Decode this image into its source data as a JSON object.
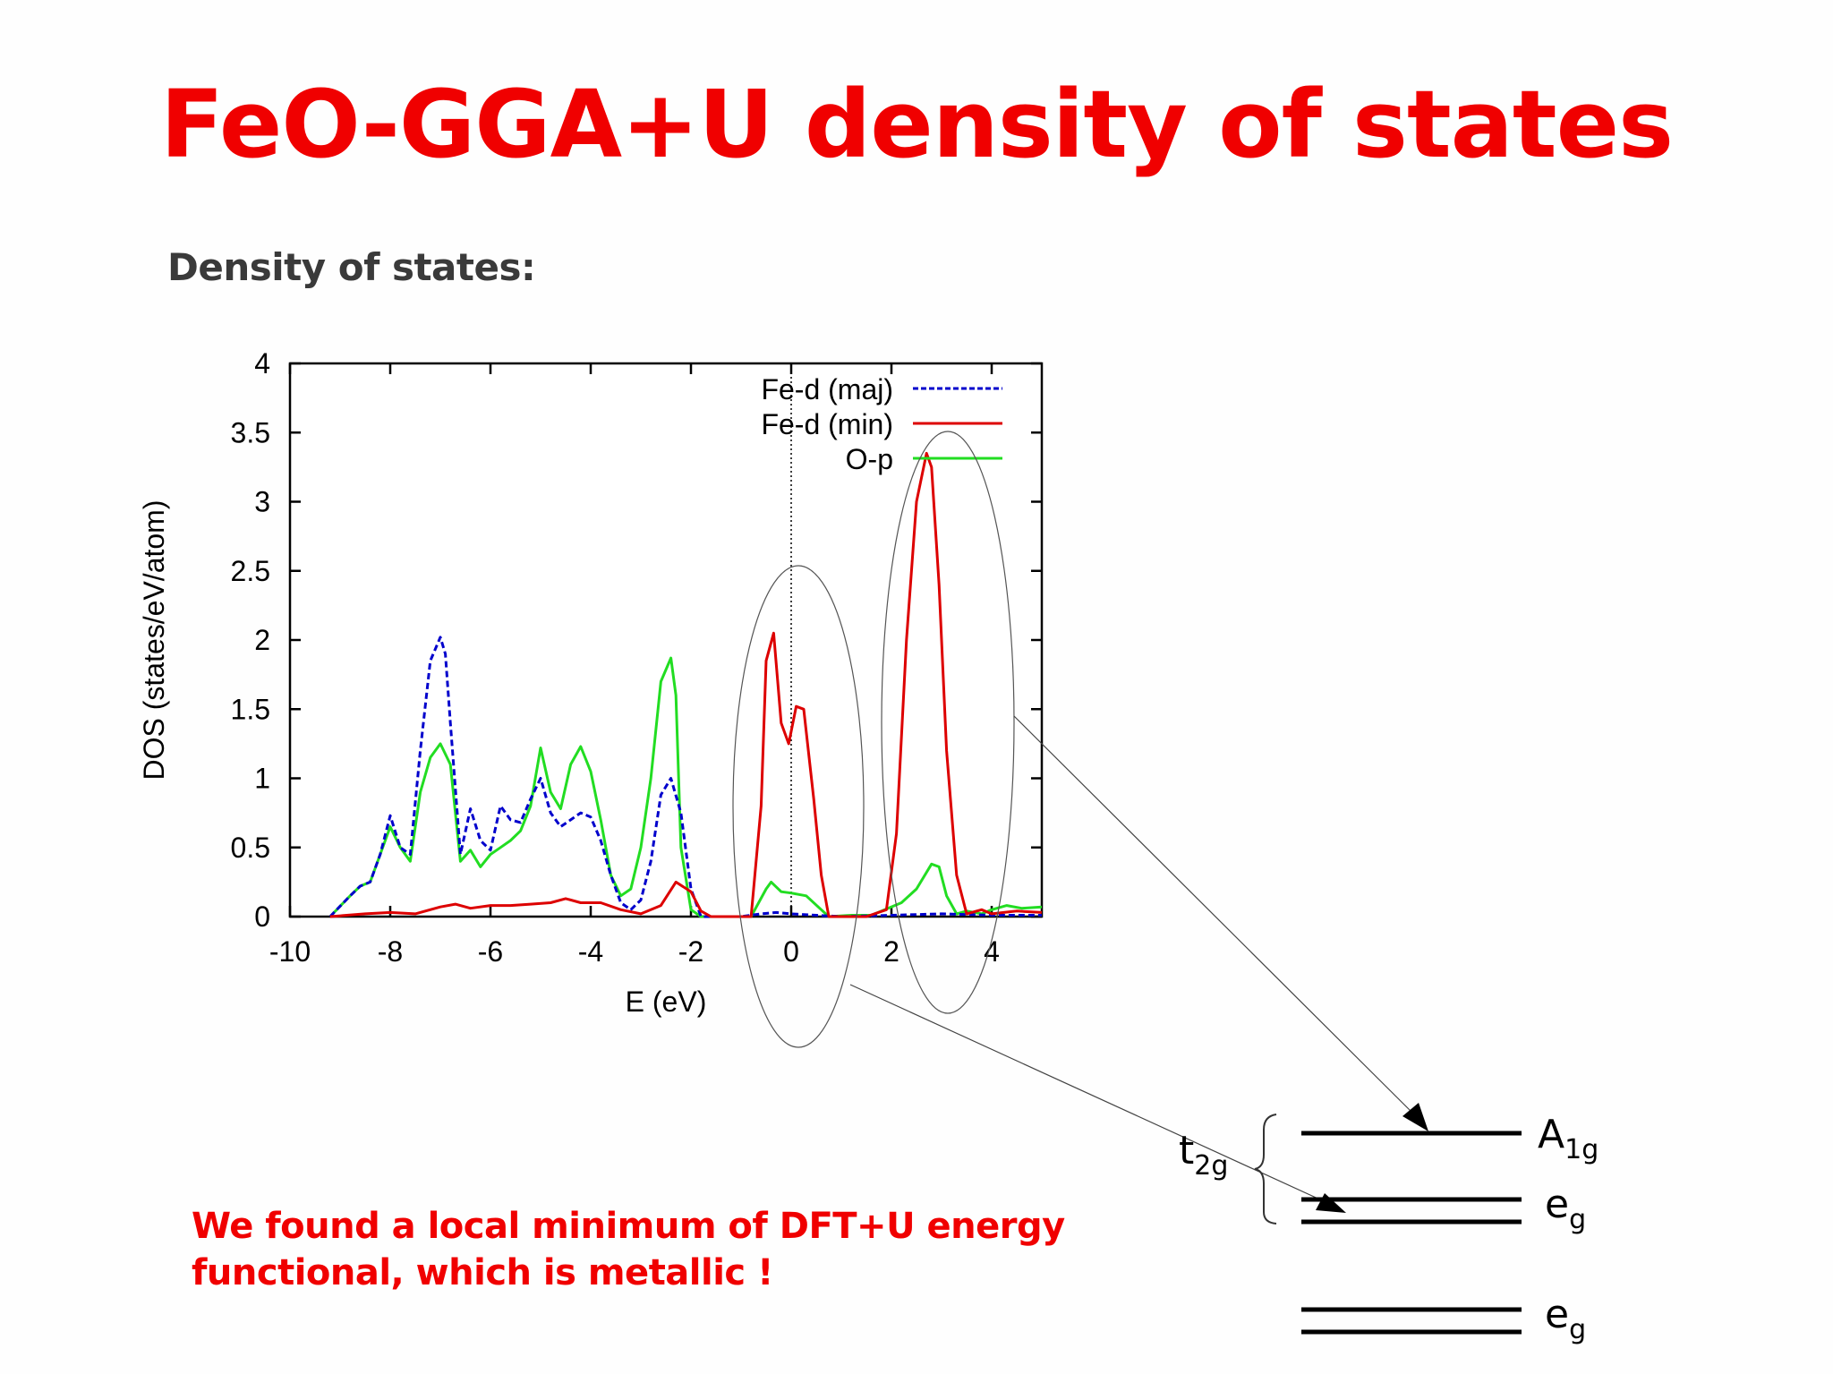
{
  "slide": {
    "title": "FeO-GGA+U density of states",
    "subtitle": "Density of states:",
    "note_line1": "We found a local minimum of DFT+U energy",
    "note_line2": "functional, which is metallic !",
    "colors": {
      "title": "#f00000",
      "subtitle": "#3a3a3a",
      "note": "#f00000"
    }
  },
  "chart_data": {
    "type": "line",
    "title": "",
    "xlabel": "E (eV)",
    "ylabel": "DOS (states/eV/atom)",
    "xlim": [
      -10,
      5
    ],
    "ylim": [
      0,
      4
    ],
    "xticks": [
      "-10",
      "-8",
      "-6",
      "-4",
      "-2",
      "0",
      "2",
      "4"
    ],
    "yticks": [
      "0",
      "0.5",
      "1",
      "1.5",
      "2",
      "2.5",
      "3",
      "3.5",
      "4"
    ],
    "grid": false,
    "legend_position": "top-right",
    "fermi_level_line": {
      "x": 0,
      "style": "dotted"
    },
    "series": [
      {
        "name": "Fe-d (maj)",
        "color": "#0000cc",
        "style": "dashed",
        "x": [
          -9.2,
          -8.8,
          -8.6,
          -8.4,
          -8.2,
          -8.0,
          -7.8,
          -7.6,
          -7.4,
          -7.2,
          -7.0,
          -6.9,
          -6.8,
          -6.6,
          -6.4,
          -6.2,
          -6.0,
          -5.8,
          -5.6,
          -5.4,
          -5.2,
          -5.0,
          -4.8,
          -4.6,
          -4.4,
          -4.2,
          -4.0,
          -3.8,
          -3.6,
          -3.4,
          -3.2,
          -3.0,
          -2.8,
          -2.6,
          -2.4,
          -2.2,
          -2.0,
          -1.8,
          -1.6,
          -1.0,
          -0.6,
          -0.3,
          0,
          0.5,
          1.0,
          2.0,
          3.0,
          4.0,
          5.0
        ],
        "y": [
          0,
          0.15,
          0.22,
          0.25,
          0.45,
          0.73,
          0.5,
          0.45,
          1.2,
          1.85,
          2.02,
          1.9,
          1.4,
          0.45,
          0.78,
          0.55,
          0.48,
          0.8,
          0.7,
          0.68,
          0.85,
          1.0,
          0.75,
          0.65,
          0.7,
          0.75,
          0.72,
          0.55,
          0.3,
          0.1,
          0.05,
          0.12,
          0.4,
          0.88,
          1.0,
          0.75,
          0.2,
          0,
          0,
          0,
          0.02,
          0.03,
          0.02,
          0.01,
          0,
          0.01,
          0.02,
          0.01,
          0.01
        ]
      },
      {
        "name": "Fe-d (min)",
        "color": "#dd0000",
        "style": "solid",
        "x": [
          -9.2,
          -8.5,
          -8.0,
          -7.5,
          -7.0,
          -6.7,
          -6.4,
          -6.0,
          -5.6,
          -5.2,
          -4.8,
          -4.5,
          -4.2,
          -3.8,
          -3.4,
          -3.0,
          -2.6,
          -2.3,
          -2.0,
          -1.8,
          -1.6,
          -1.3,
          -0.8,
          -0.6,
          -0.5,
          -0.35,
          -0.2,
          -0.05,
          0.1,
          0.25,
          0.45,
          0.6,
          0.75,
          1.0,
          1.5,
          1.9,
          2.1,
          2.3,
          2.5,
          2.7,
          2.8,
          2.95,
          3.1,
          3.3,
          3.5,
          3.8,
          4.0,
          4.5,
          5.0
        ],
        "y": [
          0,
          0.02,
          0.03,
          0.02,
          0.07,
          0.09,
          0.06,
          0.08,
          0.08,
          0.09,
          0.1,
          0.13,
          0.1,
          0.1,
          0.05,
          0.02,
          0.08,
          0.25,
          0.18,
          0.04,
          0,
          0,
          0,
          0.8,
          1.85,
          2.05,
          1.4,
          1.25,
          1.52,
          1.5,
          0.85,
          0.3,
          0,
          0,
          0,
          0.05,
          0.6,
          2.0,
          3.0,
          3.35,
          3.25,
          2.4,
          1.2,
          0.3,
          0.02,
          0.05,
          0.02,
          0.04,
          0.03
        ]
      },
      {
        "name": "O-p",
        "color": "#22dd22",
        "style": "solid",
        "x": [
          -9.2,
          -8.8,
          -8.6,
          -8.4,
          -8.2,
          -8.0,
          -7.8,
          -7.6,
          -7.4,
          -7.2,
          -7.0,
          -6.8,
          -6.6,
          -6.4,
          -6.2,
          -6.0,
          -5.8,
          -5.6,
          -5.4,
          -5.2,
          -5.0,
          -4.8,
          -4.6,
          -4.4,
          -4.2,
          -4.0,
          -3.8,
          -3.6,
          -3.4,
          -3.2,
          -3.0,
          -2.8,
          -2.6,
          -2.4,
          -2.3,
          -2.2,
          -2.0,
          -1.8,
          -1.4,
          -0.8,
          -0.5,
          -0.4,
          -0.2,
          0,
          0.3,
          0.6,
          0.75,
          1.2,
          1.6,
          2.2,
          2.5,
          2.8,
          2.95,
          3.1,
          3.3,
          3.5,
          3.8,
          4.0,
          4.3,
          4.6,
          5.0
        ],
        "y": [
          0,
          0.15,
          0.22,
          0.25,
          0.45,
          0.65,
          0.5,
          0.4,
          0.9,
          1.15,
          1.25,
          1.1,
          0.4,
          0.48,
          0.36,
          0.45,
          0.5,
          0.55,
          0.62,
          0.8,
          1.22,
          0.9,
          0.78,
          1.1,
          1.23,
          1.05,
          0.7,
          0.3,
          0.15,
          0.2,
          0.5,
          1.0,
          1.7,
          1.87,
          1.6,
          0.5,
          0.05,
          0,
          0,
          0,
          0.2,
          0.25,
          0.18,
          0.17,
          0.15,
          0.05,
          0,
          0.01,
          0.01,
          0.1,
          0.2,
          0.38,
          0.36,
          0.15,
          0.02,
          0.04,
          0.02,
          0.05,
          0.08,
          0.06,
          0.07
        ]
      }
    ],
    "annotations": [
      {
        "type": "ellipse",
        "around_x_range": [
          -1.2,
          1.3
        ],
        "y_range": [
          -0.95,
          2.55
        ]
      },
      {
        "type": "ellipse",
        "around_x_range": [
          1.9,
          4.5
        ],
        "y_range": [
          -0.7,
          3.5
        ]
      }
    ]
  },
  "level_diagram": {
    "group_label": "t",
    "group_sub": "2g",
    "levels": [
      {
        "label": "A",
        "sub": "1g",
        "lines": 1
      },
      {
        "label": "e",
        "sub": "g",
        "lines": 2
      },
      {
        "label": "e",
        "sub": "g",
        "lines": 2
      }
    ],
    "arrows": [
      {
        "from": "ellipse-right",
        "to": "A1g"
      },
      {
        "from": "ellipse-fermi",
        "to": "eg-upper"
      }
    ]
  }
}
